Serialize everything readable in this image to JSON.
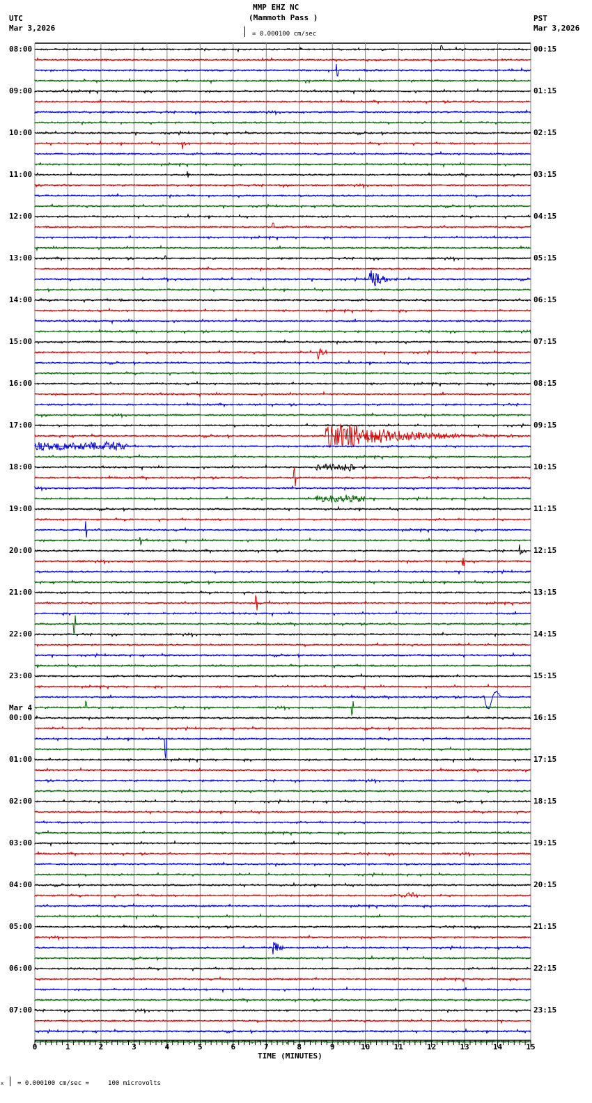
{
  "header": {
    "station": "MMP EHZ NC",
    "location": "(Mammoth Pass )",
    "left_tz": "UTC",
    "left_date": "Mar 3,2026",
    "right_tz": "PST",
    "right_date": "Mar 3,2026",
    "scale_text": "= 0.000100 cm/sec"
  },
  "footer": {
    "scale_prefix": "x",
    "scale_text": "= 0.000100 cm/sec =     100 microvolts"
  },
  "chart_data": {
    "type": "line",
    "title": "MMP EHZ NC (Mammoth Pass ) helicorder",
    "xlabel": "TIME (MINUTES)",
    "xlim": [
      0,
      15
    ],
    "x_ticks": [
      "0",
      "1",
      "2",
      "3",
      "4",
      "5",
      "6",
      "7",
      "8",
      "9",
      "10",
      "11",
      "12",
      "13",
      "14",
      "15"
    ],
    "minor_tick_interval_min": 0.1667,
    "grid": "vertical lines every 1 minute",
    "trace_spacing_px": 15,
    "traces_per_hour": 4,
    "trace_colors": [
      "#000000",
      "#d40000",
      "#0000c8",
      "#006400"
    ],
    "left_labels": [
      {
        "row": 0,
        "text": "08:00"
      },
      {
        "row": 4,
        "text": "09:00"
      },
      {
        "row": 8,
        "text": "10:00"
      },
      {
        "row": 12,
        "text": "11:00"
      },
      {
        "row": 16,
        "text": "12:00"
      },
      {
        "row": 20,
        "text": "13:00"
      },
      {
        "row": 24,
        "text": "14:00"
      },
      {
        "row": 28,
        "text": "15:00"
      },
      {
        "row": 32,
        "text": "16:00"
      },
      {
        "row": 36,
        "text": "17:00"
      },
      {
        "row": 40,
        "text": "18:00"
      },
      {
        "row": 44,
        "text": "19:00"
      },
      {
        "row": 48,
        "text": "20:00"
      },
      {
        "row": 52,
        "text": "21:00"
      },
      {
        "row": 56,
        "text": "22:00"
      },
      {
        "row": 60,
        "text": "23:00"
      },
      {
        "row": 64,
        "text": "00:00",
        "date": "Mar 4"
      },
      {
        "row": 68,
        "text": "01:00"
      },
      {
        "row": 72,
        "text": "02:00"
      },
      {
        "row": 76,
        "text": "03:00"
      },
      {
        "row": 80,
        "text": "04:00"
      },
      {
        "row": 84,
        "text": "05:00"
      },
      {
        "row": 88,
        "text": "06:00"
      },
      {
        "row": 92,
        "text": "07:00"
      }
    ],
    "right_labels": [
      "00:15",
      "01:15",
      "02:15",
      "03:15",
      "04:15",
      "05:15",
      "06:15",
      "07:15",
      "08:15",
      "09:15",
      "10:15",
      "11:15",
      "12:15",
      "13:15",
      "14:15",
      "15:15",
      "16:15",
      "17:15",
      "18:15",
      "19:15",
      "20:15",
      "21:15",
      "22:15",
      "23:15"
    ],
    "events": [
      {
        "row": 0,
        "minute": 12.3,
        "amp": 6,
        "dur": 0.1,
        "kind": "spike"
      },
      {
        "row": 2,
        "minute": 9.15,
        "amp": 10,
        "dur": 0.05,
        "kind": "spike"
      },
      {
        "row": 9,
        "minute": 4.45,
        "amp": 11,
        "dur": 0.25,
        "kind": "burst"
      },
      {
        "row": 12,
        "minute": 4.6,
        "amp": 8,
        "dur": 0.15,
        "kind": "burst"
      },
      {
        "row": 17,
        "minute": 7.2,
        "amp": 6,
        "dur": 0.1,
        "kind": "spike"
      },
      {
        "row": 20,
        "minute": 3.95,
        "amp": 5,
        "dur": 0.08,
        "kind": "spike"
      },
      {
        "row": 22,
        "minute": 3.9,
        "amp": 8,
        "dur": 0.12,
        "kind": "burst"
      },
      {
        "row": 22,
        "minute": 10.1,
        "amp": 13,
        "dur": 0.9,
        "kind": "quake"
      },
      {
        "row": 24,
        "minute": 2.55,
        "amp": 7,
        "dur": 0.12,
        "kind": "burst"
      },
      {
        "row": 29,
        "minute": 8.55,
        "amp": 10,
        "dur": 0.35,
        "kind": "quake"
      },
      {
        "row": 37,
        "minute": 8.8,
        "amp": 16,
        "dur": 6.2,
        "kind": "quake"
      },
      {
        "row": 38,
        "minute": 0.0,
        "amp": 5,
        "dur": 2.8,
        "kind": "tremor"
      },
      {
        "row": 38,
        "minute": 2.1,
        "amp": 9,
        "dur": 0.4,
        "kind": "burst"
      },
      {
        "row": 40,
        "minute": 8.5,
        "amp": 5,
        "dur": 1.2,
        "kind": "tremor"
      },
      {
        "row": 41,
        "minute": 7.85,
        "amp": 14,
        "dur": 0.3,
        "kind": "spike"
      },
      {
        "row": 43,
        "minute": 8.5,
        "amp": 5,
        "dur": 1.5,
        "kind": "tremor"
      },
      {
        "row": 46,
        "minute": 1.55,
        "amp": 14,
        "dur": 0.05,
        "kind": "spike"
      },
      {
        "row": 47,
        "minute": 3.2,
        "amp": 6,
        "dur": 0.1,
        "kind": "spike"
      },
      {
        "row": 48,
        "minute": 14.65,
        "amp": 10,
        "dur": 0.25,
        "kind": "burst"
      },
      {
        "row": 49,
        "minute": 12.95,
        "amp": 8,
        "dur": 0.08,
        "kind": "spike"
      },
      {
        "row": 53,
        "minute": 6.7,
        "amp": 12,
        "dur": 0.05,
        "kind": "spike"
      },
      {
        "row": 55,
        "minute": 1.2,
        "amp": 14,
        "dur": 0.05,
        "kind": "spike"
      },
      {
        "row": 63,
        "minute": 1.55,
        "amp": 12,
        "dur": 0.05,
        "kind": "spike"
      },
      {
        "row": 63,
        "minute": 9.6,
        "amp": 10,
        "dur": 0.05,
        "kind": "spike"
      },
      {
        "row": 62,
        "minute": 13.6,
        "amp": 24,
        "dur": 0.5,
        "kind": "pulse"
      },
      {
        "row": 66,
        "minute": 3.95,
        "amp": 26,
        "dur": 0.05,
        "kind": "spike"
      },
      {
        "row": 81,
        "minute": 11.1,
        "amp": 4,
        "dur": 0.5,
        "kind": "tremor"
      },
      {
        "row": 86,
        "minute": 7.2,
        "amp": 12,
        "dur": 0.45,
        "kind": "quake"
      }
    ]
  }
}
